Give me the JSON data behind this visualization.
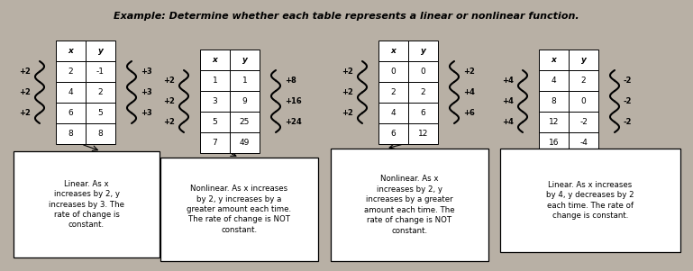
{
  "title": "Example: Determine whether each table represents a linear or nonlinear function.",
  "bg_color": "#b8b0a5",
  "paper_color": "#f0ede8",
  "figsize": [
    7.69,
    3.01
  ],
  "dpi": 100,
  "tables": [
    {
      "id": 1,
      "headers": [
        "x",
        "y"
      ],
      "rows": [
        [
          "2",
          "-1"
        ],
        [
          "4",
          "2"
        ],
        [
          "6",
          "5"
        ],
        [
          "8",
          "8"
        ]
      ],
      "left_labels": [
        "+2",
        "+2",
        "+2"
      ],
      "right_labels": [
        "+3",
        "+3",
        "+3"
      ]
    },
    {
      "id": 2,
      "headers": [
        "x",
        "y"
      ],
      "rows": [
        [
          "1",
          "1"
        ],
        [
          "3",
          "9"
        ],
        [
          "5",
          "25"
        ],
        [
          "7",
          "49"
        ]
      ],
      "left_labels": [
        "+2",
        "+2",
        "+2"
      ],
      "right_labels": [
        "+8",
        "+16",
        "+24"
      ]
    },
    {
      "id": 3,
      "headers": [
        "x",
        "y"
      ],
      "rows": [
        [
          "0",
          "0"
        ],
        [
          "2",
          "2"
        ],
        [
          "4",
          "6"
        ],
        [
          "6",
          "12"
        ]
      ],
      "left_labels": [
        "+2",
        "+2",
        "+2"
      ],
      "right_labels": [
        "+2",
        "+4",
        "+6"
      ]
    },
    {
      "id": 4,
      "headers": [
        "x",
        "y"
      ],
      "rows": [
        [
          "4",
          "2"
        ],
        [
          "8",
          "0"
        ],
        [
          "12",
          "-2"
        ],
        [
          "16",
          "-4"
        ]
      ],
      "left_labels": [
        "+4",
        "+4",
        "+4"
      ],
      "right_labels": [
        "-2",
        "-2",
        "-2"
      ]
    }
  ],
  "text_boxes": [
    {
      "text": "Linear. As x\nincreases by 2, y\nincreases by 3. The\nrate of change is\nconstant.",
      "italic_first": true
    },
    {
      "text": "Nonlinear. As x increases\nby 2, y increases by a\ngreater amount each time.\nThe rate of change is NOT\nconstant.",
      "italic_first": true
    },
    {
      "text": "Nonlinear. As x\nincreases by 2, y\nincreases by a greater\namount each time. The\nrate of change is NOT\nconstant.",
      "italic_first": true
    },
    {
      "text": "Linear. As x increases\nby 4, y decreases by 2\neach time. The rate of\nchange is constant.",
      "italic_first": true
    }
  ]
}
